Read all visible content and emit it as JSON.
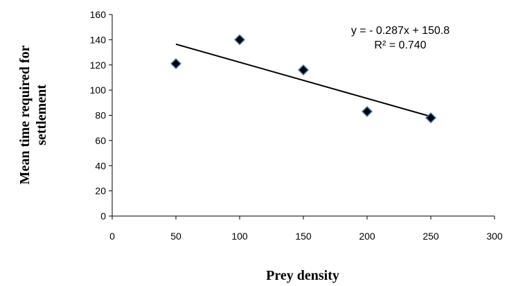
{
  "chart_data": {
    "type": "scatter",
    "x": [
      50,
      100,
      150,
      200,
      250
    ],
    "y": [
      121,
      140,
      116,
      83,
      78
    ],
    "xlabel": "Prey density",
    "ylabel_lines": [
      "Mean time required for",
      "settlement"
    ],
    "xlim": [
      0,
      300
    ],
    "ylim": [
      0,
      160
    ],
    "xticks": [
      0,
      50,
      100,
      150,
      200,
      250,
      300
    ],
    "yticks": [
      0,
      20,
      40,
      60,
      80,
      100,
      120,
      140,
      160
    ],
    "grid": false,
    "trendline": {
      "type": "linear",
      "slope": -0.287,
      "intercept": 150.8,
      "x_range": [
        50,
        250
      ],
      "equation_text": "y = - 0.287x + 150.8",
      "r2_text": "R² = 0.740"
    },
    "marker": {
      "shape": "diamond",
      "fill": "#000000",
      "stroke": "#4f81bd"
    }
  }
}
